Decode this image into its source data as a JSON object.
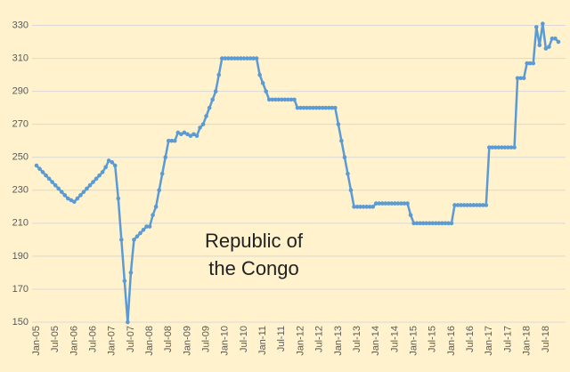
{
  "chart_data": {
    "type": "line",
    "annotation": [
      "Republic of",
      "the Congo"
    ],
    "categories": [
      "Jan-05",
      null,
      null,
      null,
      null,
      null,
      "Jul-05",
      null,
      null,
      null,
      null,
      null,
      "Jan-06",
      null,
      null,
      null,
      null,
      null,
      "Jul-06",
      null,
      null,
      null,
      null,
      null,
      "Jan-07",
      null,
      null,
      null,
      null,
      null,
      "Jul-07",
      null,
      null,
      null,
      null,
      null,
      "Jan-08",
      null,
      null,
      null,
      null,
      null,
      "Jul-08",
      null,
      null,
      null,
      null,
      null,
      "Jan-09",
      null,
      null,
      null,
      null,
      null,
      "Jul-09",
      null,
      null,
      null,
      null,
      null,
      "Jan-10",
      null,
      null,
      null,
      null,
      null,
      "Jul-10",
      null,
      null,
      null,
      null,
      null,
      "Jan-11",
      null,
      null,
      null,
      null,
      null,
      "Jul-11",
      null,
      null,
      null,
      null,
      null,
      "Jan-12",
      null,
      null,
      null,
      null,
      null,
      "Jul-12",
      null,
      null,
      null,
      null,
      null,
      "Jan-13",
      null,
      null,
      null,
      null,
      null,
      "Jul-13",
      null,
      null,
      null,
      null,
      null,
      "Jan-14",
      null,
      null,
      null,
      null,
      null,
      "Jul-14",
      null,
      null,
      null,
      null,
      null,
      "Jan-15",
      null,
      null,
      null,
      null,
      null,
      "Jul-15",
      null,
      null,
      null,
      null,
      null,
      "Jan-16",
      null,
      null,
      null,
      null,
      null,
      "Jul-16",
      null,
      null,
      null,
      null,
      null,
      "Jan-17",
      null,
      null,
      null,
      null,
      null,
      "Jul-17",
      null,
      null,
      null,
      null,
      null,
      "Jan-18",
      null,
      null,
      null,
      null,
      null,
      "Jul-18",
      null,
      null,
      null,
      null
    ],
    "series": [
      {
        "color": "#5b9bd5",
        "values": [
          245,
          243,
          241,
          239,
          237,
          235,
          233,
          231,
          229,
          227,
          225,
          224,
          223,
          225,
          227,
          229,
          231,
          233,
          235,
          237,
          239,
          241,
          244,
          248,
          247,
          245,
          225,
          200,
          175,
          150,
          180,
          200,
          202,
          204,
          206,
          208,
          208,
          215,
          220,
          230,
          240,
          250,
          260,
          260,
          260,
          265,
          264,
          265,
          264,
          263,
          264,
          263,
          268,
          270,
          275,
          280,
          285,
          290,
          300,
          310,
          310,
          310,
          310,
          310,
          310,
          310,
          310,
          310,
          310,
          310,
          310,
          300,
          295,
          290,
          285,
          285,
          285,
          285,
          285,
          285,
          285,
          285,
          285,
          280,
          280,
          280,
          280,
          280,
          280,
          280,
          280,
          280,
          280,
          280,
          280,
          280,
          270,
          260,
          250,
          240,
          230,
          220,
          220,
          220,
          220,
          220,
          220,
          220,
          222,
          222,
          222,
          222,
          222,
          222,
          222,
          222,
          222,
          222,
          222,
          215,
          210,
          210,
          210,
          210,
          210,
          210,
          210,
          210,
          210,
          210,
          210,
          210,
          210,
          221,
          221,
          221,
          221,
          221,
          221,
          221,
          221,
          221,
          221,
          221,
          256,
          256,
          256,
          256,
          256,
          256,
          256,
          256,
          256,
          298,
          298,
          298,
          307,
          307,
          307,
          329,
          318,
          331,
          316,
          317,
          322,
          322,
          320
        ]
      }
    ],
    "ylim": [
      150,
      340
    ],
    "yticks": [
      150,
      170,
      190,
      210,
      230,
      250,
      270,
      290,
      310,
      330
    ],
    "grid": true
  }
}
